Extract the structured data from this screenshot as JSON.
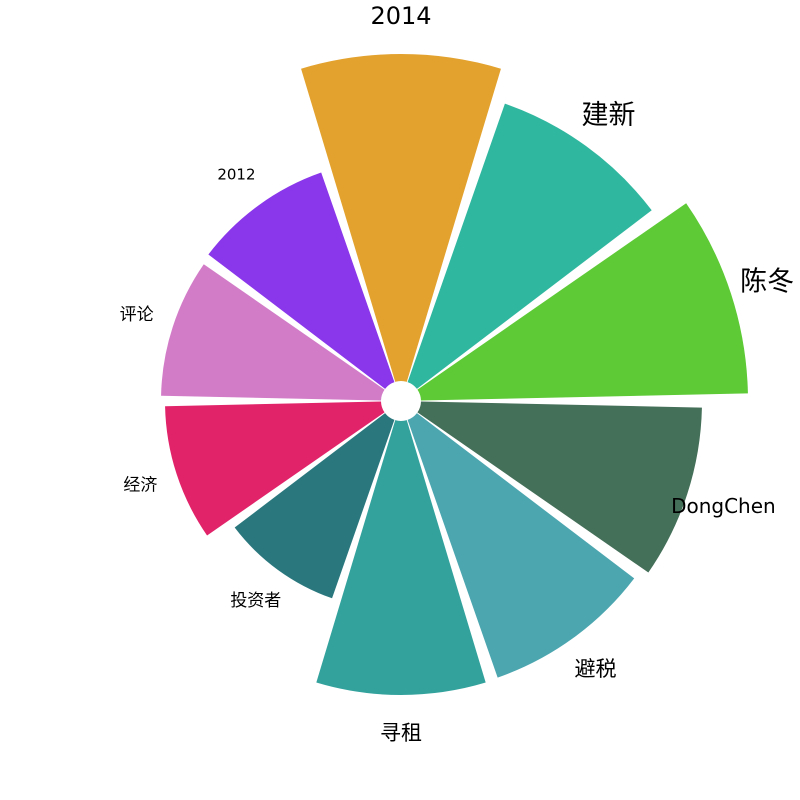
{
  "chart_data": {
    "type": "bar",
    "subtype": "polar-bar",
    "title": "",
    "start_angle_deg_clockwise_from_top": 0,
    "direction": "clockwise",
    "categories": [
      "2014",
      "建新",
      "陈冬",
      "DongChen",
      "避税",
      "寻租",
      "投资者",
      "经济",
      "评论",
      "2012"
    ],
    "values": [
      347,
      315,
      347,
      301,
      293,
      294,
      209,
      236,
      240,
      242
    ],
    "colors": [
      "#e3a22e",
      "#30b79f",
      "#5dca36",
      "#446f58",
      "#4ba6b0",
      "#33a29d",
      "#2a787e",
      "#e1246a",
      "#d27cc8",
      "#8a36ea"
    ],
    "label_font_sizes": [
      24,
      27,
      27,
      20,
      21,
      21,
      17,
      17,
      17,
      15
    ]
  }
}
